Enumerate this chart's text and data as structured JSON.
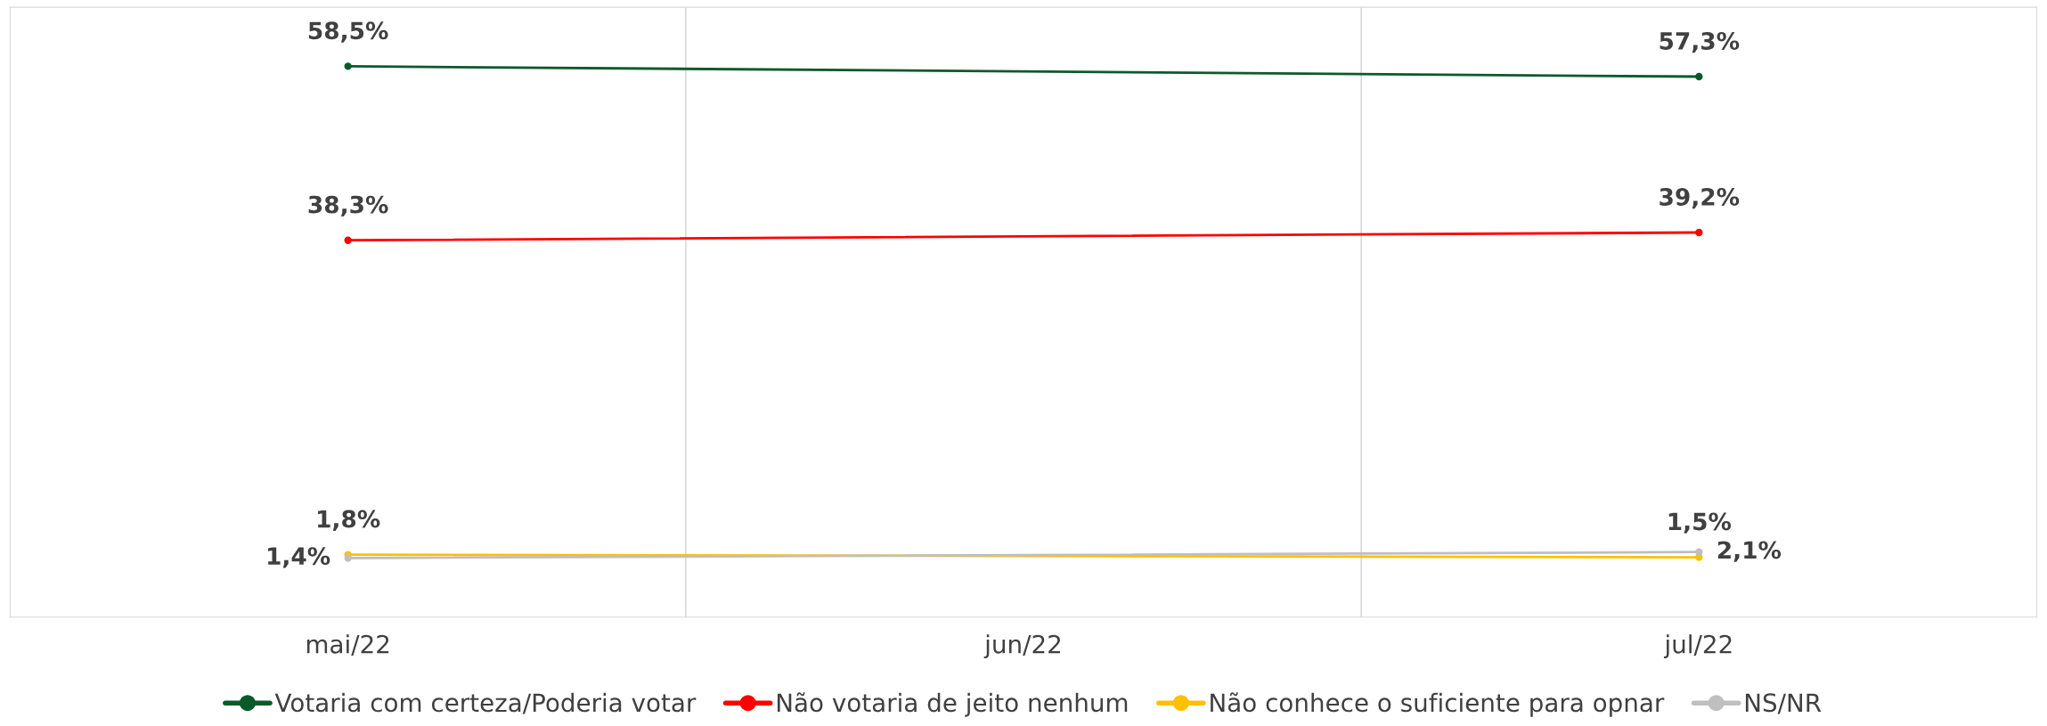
{
  "chart_data": {
    "type": "line",
    "categories": [
      "mai/22",
      "jun/22",
      "jul/22"
    ],
    "series": [
      {
        "name": "Votaria com certeza/Poderia votar",
        "color": "#0b5a2a",
        "values": [
          58.5,
          null,
          57.3
        ],
        "value_labels": [
          "58,5%",
          null,
          "57,3%"
        ]
      },
      {
        "name": "Não votaria de jeito nenhum",
        "color": "#ff0000",
        "values": [
          38.3,
          null,
          39.2
        ],
        "value_labels": [
          "38,3%",
          null,
          "39,2%"
        ]
      },
      {
        "name": "Não conhece o suficiente para opnar",
        "color": "#ffc000",
        "values": [
          1.8,
          null,
          1.5
        ],
        "value_labels": [
          "1,8%",
          null,
          "1,5%"
        ]
      },
      {
        "name": "NS/NR",
        "color": "#bfbfbf",
        "values": [
          1.4,
          null,
          2.1
        ],
        "value_labels": [
          "1,4%",
          null,
          "2,1%"
        ]
      }
    ],
    "grid": "x",
    "legend": "bottom",
    "marker": "circle",
    "line_style": "solid"
  }
}
